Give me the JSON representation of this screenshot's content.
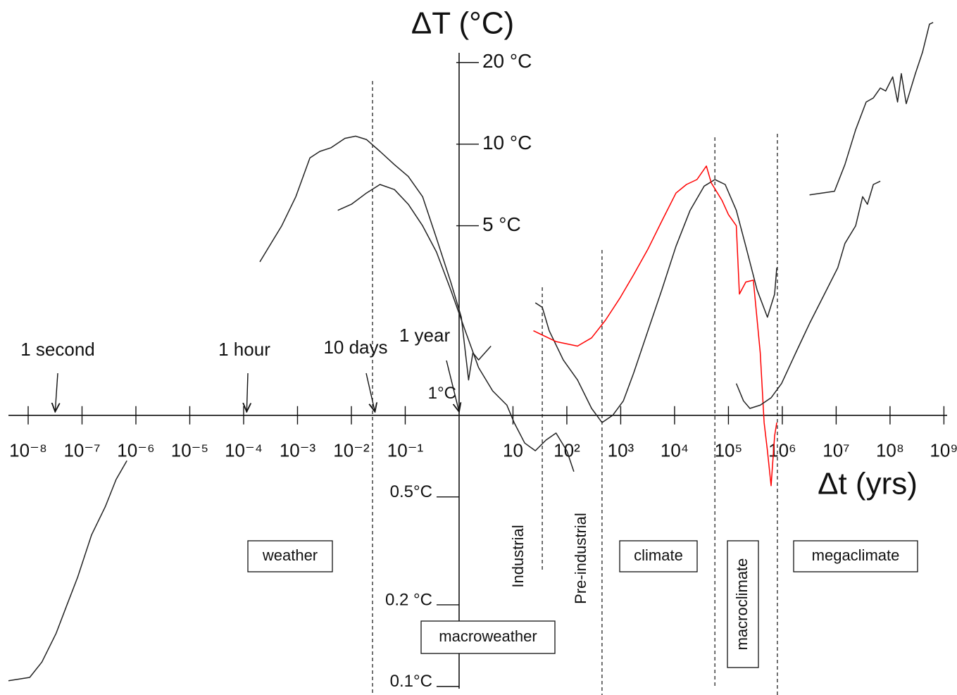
{
  "chart_data": {
    "type": "line",
    "title": "ΔT (°C)",
    "x_label": "Δt (yrs)",
    "log_x": true,
    "log_y": true,
    "xlim": [
      3e-09,
      1750000000.0
    ],
    "ylim": [
      0.093,
      34
    ],
    "axes_cross": [
      1,
      1
    ],
    "xticks": [
      {
        "value": 1e-08,
        "label": "10⁻⁸"
      },
      {
        "value": 1e-07,
        "label": "10⁻⁷"
      },
      {
        "value": 1e-06,
        "label": "10⁻⁶"
      },
      {
        "value": 1e-05,
        "label": "10⁻⁵"
      },
      {
        "value": 0.0001,
        "label": "10⁻⁴"
      },
      {
        "value": 0.001,
        "label": "10⁻³"
      },
      {
        "value": 0.01,
        "label": "10⁻²"
      },
      {
        "value": 0.1,
        "label": "10⁻¹"
      },
      10,
      {
        "value": 100,
        "label": "10²"
      },
      {
        "value": 1000,
        "label": "10³"
      },
      {
        "value": 10000,
        "label": "10⁴"
      },
      {
        "value": 100000,
        "label": "10⁵"
      },
      {
        "value": 1000000,
        "label": "10⁶"
      },
      {
        "value": 10000000,
        "label": "10⁷"
      },
      {
        "value": 100000000,
        "label": "10⁸"
      },
      {
        "value": 1000000000,
        "label": "10⁹"
      }
    ],
    "yticks": [
      {
        "value": 20,
        "label": "20 °C"
      },
      {
        "value": 10,
        "label": "10 °C"
      },
      {
        "value": 5,
        "label": "5 °C"
      },
      {
        "value": 1,
        "label": "1°C"
      },
      {
        "value": 0.5,
        "label": "0.5°C"
      },
      {
        "value": 0.2,
        "label": "0.2 °C"
      },
      {
        "value": 0.1,
        "label": "0.1°C"
      }
    ],
    "annotations": [
      {
        "text": "1 second",
        "x": 3.17e-08
      },
      {
        "text": "1 hour",
        "x": 0.000114
      },
      {
        "text": "10 days",
        "x": 0.0274
      },
      {
        "text": "1 year",
        "x": 1
      }
    ],
    "vlines": [
      0.0247,
      35,
      450,
      56000,
      810000
    ],
    "regimes": [
      "weather",
      "macroweather",
      "Industrial",
      "Pre-industrial",
      "climate",
      "macroclimate",
      "megaclimate"
    ],
    "series": [
      {
        "color": "#222222",
        "x": [
          4.3e-09,
          1.07e-08,
          1.8e-08,
          3.3e-08,
          5.2e-08,
          8.3e-08,
          1.5e-07,
          2.7e-07,
          4.3e-07,
          6.8e-07
        ],
        "values": [
          0.105,
          0.108,
          0.123,
          0.157,
          0.199,
          0.253,
          0.362,
          0.46,
          0.58,
          0.68
        ]
      },
      {
        "color": "#222222",
        "x": [
          0.0002,
          0.00051,
          0.00093,
          0.0017,
          0.0026,
          0.0042,
          0.0076,
          0.012,
          0.019,
          0.034,
          0.063,
          0.114,
          0.21,
          0.38,
          0.7,
          1.1,
          1.5,
          1.8,
          2.3,
          3.9
        ],
        "values": [
          3.68,
          5.0,
          6.4,
          8.9,
          9.4,
          9.7,
          10.5,
          10.7,
          10.4,
          9.4,
          8.4,
          7.6,
          6.4,
          4.5,
          3.1,
          2.3,
          1.35,
          1.7,
          1.6,
          1.8
        ]
      },
      {
        "color": "#222222",
        "x": [
          0.0056,
          0.01,
          0.019,
          0.034,
          0.063,
          0.114,
          0.21,
          0.38,
          0.7,
          1.3,
          2.3,
          4.2,
          7.7,
          10.5,
          16.5,
          26,
          41,
          63,
          100,
          135
        ],
        "values": [
          5.7,
          6.0,
          6.6,
          7.1,
          6.8,
          6.0,
          5.0,
          4.0,
          2.9,
          2.05,
          1.5,
          1.23,
          1.09,
          0.94,
          0.79,
          0.74,
          0.81,
          0.86,
          0.74,
          0.62
        ]
      },
      {
        "color": "#222222",
        "x": [
          26,
          35,
          47,
          86,
          158,
          288,
          450,
          710,
          1120,
          1740,
          3200,
          5800,
          10600,
          19400,
          35500,
          56000,
          87000,
          140000,
          210000,
          340000,
          530000,
          720000,
          790000
        ],
        "values": [
          2.6,
          2.5,
          2.05,
          1.6,
          1.35,
          1.06,
          0.94,
          1.0,
          1.13,
          1.43,
          2.05,
          2.9,
          4.2,
          5.7,
          7.0,
          7.4,
          7.1,
          5.7,
          4.2,
          2.9,
          2.3,
          2.8,
          3.5
        ]
      },
      {
        "color": "#ff0000",
        "x": [
          24,
          63,
          158,
          288,
          520,
          960,
          1740,
          3200,
          5800,
          10600,
          16600,
          26000,
          39000,
          48000,
          76000,
          100000,
          140000,
          160000,
          210000,
          290000,
          390000,
          460000,
          530000,
          620000,
          720000,
          790000
        ],
        "values": [
          2.05,
          1.87,
          1.8,
          1.93,
          2.24,
          2.7,
          3.3,
          4.1,
          5.2,
          6.6,
          7.1,
          7.4,
          8.3,
          7.2,
          6.2,
          5.5,
          5.0,
          2.8,
          3.1,
          3.15,
          1.7,
          0.94,
          0.74,
          0.55,
          0.84,
          0.94
        ]
      },
      {
        "color": "#222222",
        "x": [
          140000,
          190000,
          250000,
          390000,
          620000,
          970000,
          1800000,
          3200000,
          5900000,
          10700000,
          14500000,
          23000000,
          31000000,
          38000000,
          49000000,
          66000000
        ],
        "values": [
          1.31,
          1.13,
          1.06,
          1.09,
          1.16,
          1.31,
          1.71,
          2.18,
          2.77,
          3.5,
          4.3,
          5.0,
          6.4,
          6.0,
          7.1,
          7.3
        ]
      },
      {
        "color": "#222222",
        "x": [
          3200000,
          9300000,
          14500000,
          23000000,
          36000000,
          49000000,
          66000000,
          83000000,
          112000000,
          138000000,
          162000000,
          200000000,
          295000000,
          400000000,
          540000000,
          630000000
        ],
        "values": [
          6.5,
          6.7,
          8.4,
          11.3,
          14.3,
          14.8,
          16.1,
          15.7,
          17.7,
          14.3,
          18.2,
          14.1,
          18.2,
          21.8,
          27.7,
          28.1
        ]
      }
    ]
  }
}
